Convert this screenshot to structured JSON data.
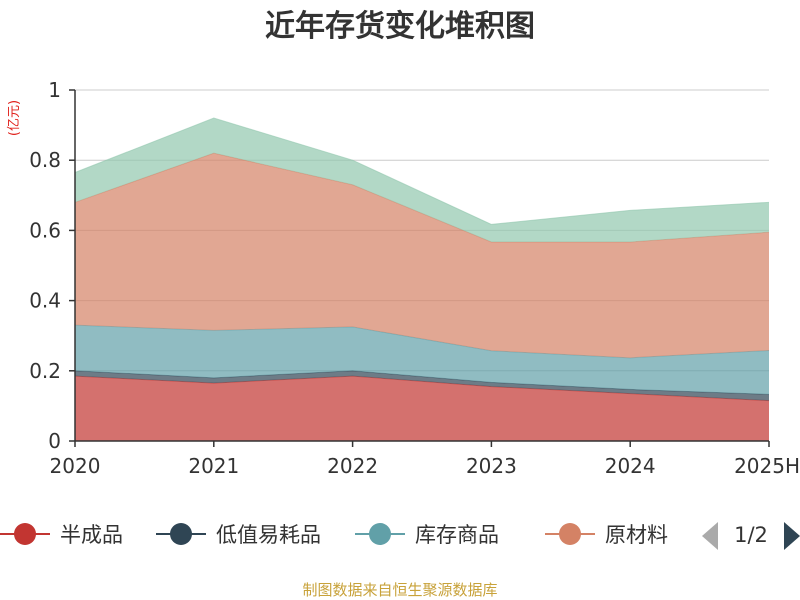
{
  "chart_data": {
    "type": "area",
    "stacked": true,
    "title": "近年存货变化堆积图",
    "ylabel": "(亿元)",
    "xlabel": "",
    "categories": [
      "2020",
      "2021",
      "2022",
      "2023",
      "2024",
      "2025H"
    ],
    "ylim": [
      0,
      1
    ],
    "yticks": [
      "0",
      "0.2",
      "0.4",
      "0.6",
      "0.8",
      "1"
    ],
    "grid": true,
    "series": [
      {
        "name": "半成品",
        "color": "#c23531",
        "values": [
          0.185,
          0.165,
          0.185,
          0.155,
          0.135,
          0.115
        ]
      },
      {
        "name": "低值易耗品",
        "color": "#2f4554",
        "values": [
          0.015,
          0.015,
          0.015,
          0.012,
          0.012,
          0.018
        ]
      },
      {
        "name": "库存商品",
        "color": "#61a0a8",
        "values": [
          0.13,
          0.135,
          0.125,
          0.09,
          0.09,
          0.125
        ]
      },
      {
        "name": "原材料",
        "color": "#d48265",
        "values": [
          0.35,
          0.505,
          0.405,
          0.31,
          0.33,
          0.337
        ]
      },
      {
        "name": "",
        "color": "#91c7ae",
        "values": [
          0.085,
          0.1,
          0.07,
          0.05,
          0.09,
          0.085
        ]
      }
    ],
    "legend": {
      "position": "bottom",
      "page": "1/2"
    }
  },
  "source_text": "制图数据来自恒生聚源数据库"
}
